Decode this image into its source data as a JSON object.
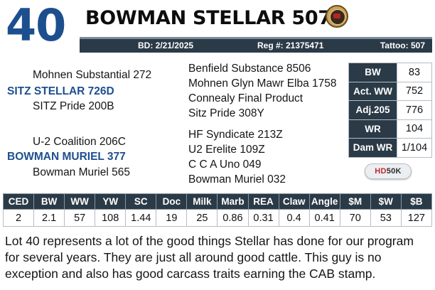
{
  "lot": {
    "number": "40",
    "name": "BOWMAN STELLAR 507"
  },
  "info_bar": {
    "bd": "BD: 2/21/2025",
    "reg": "Reg #: 21375471",
    "tattoo": "Tattoo: 507"
  },
  "pedigree": {
    "sire_sire": "Mohnen Substantial 272",
    "sire": "SITZ STELLAR 726D",
    "sire_dam": "SITZ Pride 200B",
    "sss": "Benfield Substance 8506",
    "ssd": "Mohnen Glyn Mawr Elba 1758",
    "sds": "Connealy Final Product",
    "sdd": "Sitz Pride 308Y",
    "dam_sire": "U-2 Coalition 206C",
    "dam": "BOWMAN MURIEL 377",
    "dam_dam": "Bowman Muriel 565",
    "dss": "HF Syndicate 213Z",
    "dsd": "U2 Erelite 109Z",
    "dds": "C C A Uno 049",
    "ddd": "Bowman Muriel 032"
  },
  "side_stats": [
    {
      "label": "BW",
      "value": "83"
    },
    {
      "label": "Act. WW",
      "value": "752"
    },
    {
      "label": "Adj.205",
      "value": "776"
    },
    {
      "label": "WR",
      "value": "104"
    },
    {
      "label": "Dam WR",
      "value": "1/104"
    }
  ],
  "badge": {
    "hd": "HD",
    "rest": "50K"
  },
  "epds": {
    "headers": [
      "CED",
      "BW",
      "WW",
      "YW",
      "SC",
      "Doc",
      "Milk",
      "Marb",
      "REA",
      "Claw",
      "Angle",
      "$M",
      "$W",
      "$B"
    ],
    "values": [
      "2",
      "2.1",
      "57",
      "108",
      "1.44",
      "19",
      "25",
      "0.86",
      "0.31",
      "0.4",
      "0.41",
      "70",
      "53",
      "127"
    ]
  },
  "description": "Lot 40 represents a lot of the good things Stellar has done for our program for several years.  They are just all around good cattle.  This guy is no exception and also has good carcass traits earning the CAB stamp.",
  "colors": {
    "accent_blue": "#1d4f8f",
    "header_dark": "#2b3a47",
    "badge_red": "#c4262e"
  }
}
